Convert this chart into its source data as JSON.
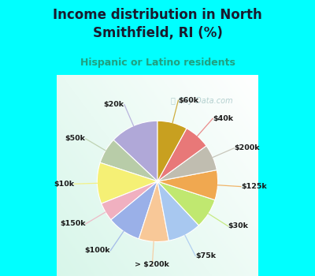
{
  "title": "Income distribution in North\nSmithfield, RI (%)",
  "subtitle": "Hispanic or Latino residents",
  "watermark": "ⓘ City-Data.com",
  "labels": [
    "$20k",
    "$50k",
    "$10k",
    "$150k",
    "$100k",
    "> $200k",
    "$75k",
    "$30k",
    "$125k",
    "$200k",
    "$40k",
    "$60k"
  ],
  "values": [
    13,
    7,
    11,
    5,
    9,
    8,
    9,
    8,
    8,
    7,
    7,
    8
  ],
  "colors": [
    "#b0a8d8",
    "#b8cca8",
    "#f5f075",
    "#f0b0c0",
    "#9ab0e8",
    "#f8c898",
    "#a8c8f0",
    "#c0e870",
    "#f0a850",
    "#c0bdb0",
    "#e87878",
    "#c8a020"
  ],
  "bg_cyan": "#00ffff",
  "bg_chart": "#d8f0e0",
  "title_color": "#1a1a2e",
  "subtitle_color": "#20a080",
  "label_color": "#1a1a1a",
  "startangle": 90,
  "figsize": [
    4.0,
    3.5
  ],
  "dpi": 100
}
